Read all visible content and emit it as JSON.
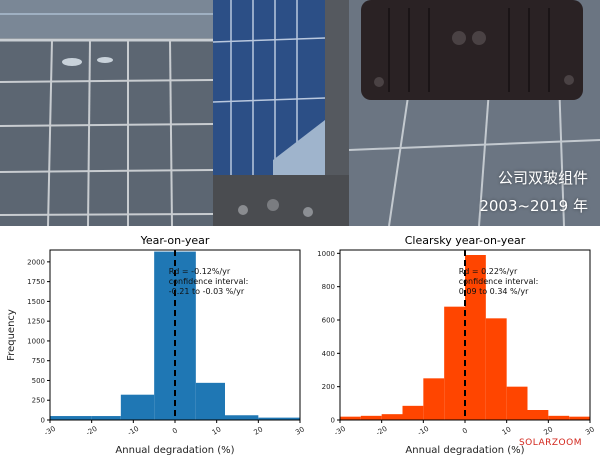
{
  "photos": {
    "caption_company": "公司双玻组件",
    "caption_years": "2003~2019 年"
  },
  "watermark": "SOLARZOOM",
  "chart_data": [
    {
      "type": "bar",
      "title": "Year-on-year",
      "xlabel": "Annual degradation (%)",
      "ylabel": "Frequency",
      "color": "#1f77b4",
      "xlim": [
        -30,
        30
      ],
      "ylim": [
        0,
        2150
      ],
      "xticks": [
        -30,
        -20,
        -10,
        0,
        10,
        20,
        30
      ],
      "yticks": [
        0,
        250,
        500,
        750,
        1000,
        1250,
        1500,
        1750,
        2000
      ],
      "bins": [
        {
          "x0": -30,
          "x1": -20,
          "value": 50
        },
        {
          "x0": -20,
          "x1": -13,
          "value": 50
        },
        {
          "x0": -13,
          "x1": -5,
          "value": 320
        },
        {
          "x0": -5,
          "x1": 5,
          "value": 2130
        },
        {
          "x0": 5,
          "x1": 12,
          "value": 470
        },
        {
          "x0": 12,
          "x1": 20,
          "value": 60
        },
        {
          "x0": 20,
          "x1": 30,
          "value": 30
        }
      ],
      "median_line_x": 0,
      "annotation": [
        "Rd = -0.12%/yr",
        "confidence interval:",
        "-0.21 to -0.03 %/yr"
      ]
    },
    {
      "type": "bar",
      "title": "Clearsky year-on-year",
      "xlabel": "Annual degradation (%)",
      "ylabel": "",
      "color": "#ff4500",
      "xlim": [
        -30,
        30
      ],
      "ylim": [
        0,
        1020
      ],
      "xticks": [
        -30,
        -20,
        -10,
        0,
        10,
        20,
        30
      ],
      "yticks": [
        0,
        200,
        400,
        600,
        800,
        1000
      ],
      "bins": [
        {
          "x0": -30,
          "x1": -25,
          "value": 20
        },
        {
          "x0": -25,
          "x1": -20,
          "value": 25
        },
        {
          "x0": -20,
          "x1": -15,
          "value": 35
        },
        {
          "x0": -15,
          "x1": -10,
          "value": 85
        },
        {
          "x0": -10,
          "x1": -5,
          "value": 250
        },
        {
          "x0": -5,
          "x1": 0,
          "value": 680
        },
        {
          "x0": 0,
          "x1": 5,
          "value": 990
        },
        {
          "x0": 5,
          "x1": 10,
          "value": 610
        },
        {
          "x0": 10,
          "x1": 15,
          "value": 200
        },
        {
          "x0": 15,
          "x1": 20,
          "value": 60
        },
        {
          "x0": 20,
          "x1": 25,
          "value": 25
        },
        {
          "x0": 25,
          "x1": 30,
          "value": 20
        }
      ],
      "median_line_x": 0,
      "annotation": [
        "Rd = 0.22%/yr",
        "confidence interval:",
        "0.09 to 0.34 %/yr"
      ]
    }
  ]
}
